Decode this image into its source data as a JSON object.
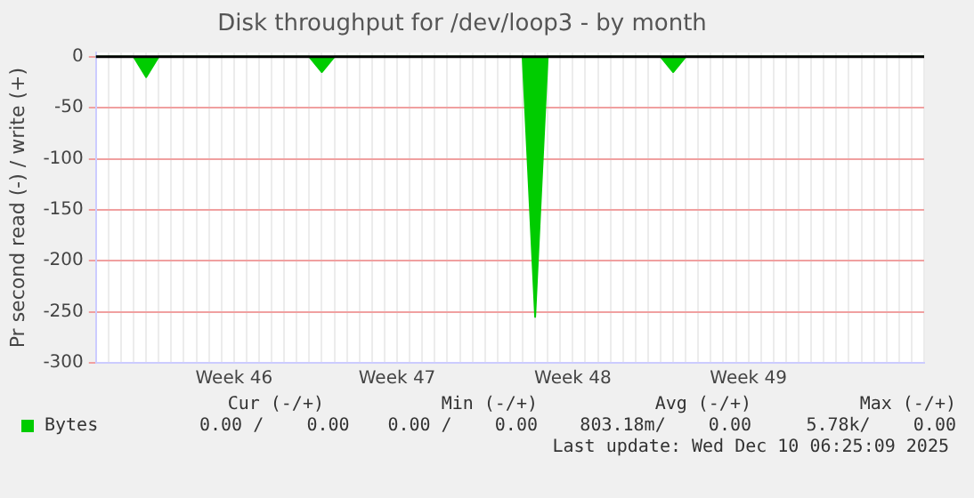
{
  "chart_data": {
    "type": "area",
    "title": "Disk throughput for /dev/loop3 - by month",
    "ylabel": "Pr second read (-) / write (+)",
    "categories": [
      null,
      null,
      null,
      null,
      null,
      null,
      null,
      null,
      null,
      null,
      null,
      "Week 46",
      null,
      null,
      null,
      null,
      null,
      null,
      null,
      null,
      null,
      null,
      null,
      null,
      "Week 47",
      null,
      null,
      null,
      null,
      null,
      null,
      null,
      null,
      null,
      null,
      null,
      null,
      null,
      "Week 48",
      null,
      null,
      null,
      null,
      null,
      null,
      null,
      null,
      null,
      null,
      null,
      null,
      null,
      "Week 49",
      null,
      null,
      null,
      null,
      null,
      null,
      null,
      null,
      null,
      null,
      null,
      null,
      null,
      null
    ],
    "series": [
      {
        "name": "Bytes",
        "color": "#00cc00",
        "values": [
          0,
          0,
          0,
          0,
          -20,
          0,
          0,
          0,
          0,
          0,
          0,
          0,
          0,
          0,
          0,
          0,
          0,
          0,
          -15,
          0,
          0,
          0,
          0,
          0,
          0,
          0,
          0,
          0,
          0,
          0,
          0,
          0,
          0,
          0,
          0,
          -255,
          0,
          0,
          0,
          0,
          0,
          0,
          0,
          0,
          0,
          0,
          -15,
          0,
          0,
          0,
          0,
          0,
          0,
          0,
          0,
          0,
          0,
          0,
          0,
          0,
          0,
          0,
          0,
          0,
          0,
          0,
          0
        ]
      }
    ],
    "ylim": [
      -300,
      4
    ],
    "yticks": [
      -300,
      -250,
      -200,
      -150,
      -100,
      -50,
      0
    ],
    "grid": true,
    "legend": "bottom",
    "ref_lines": [
      {
        "axis": "y",
        "value": 0,
        "color": "#000000"
      }
    ],
    "annotations": [
      "Cur (-/+)",
      "Min (-/+)",
      "Avg (-/+)",
      "Max (-/+)",
      "0.00 /    0.00",
      "0.00 /    0.00",
      "803.18m/    0.00",
      "5.78k/    0.00",
      "Last update: Wed Dec 10 06:25:09 2025"
    ]
  }
}
